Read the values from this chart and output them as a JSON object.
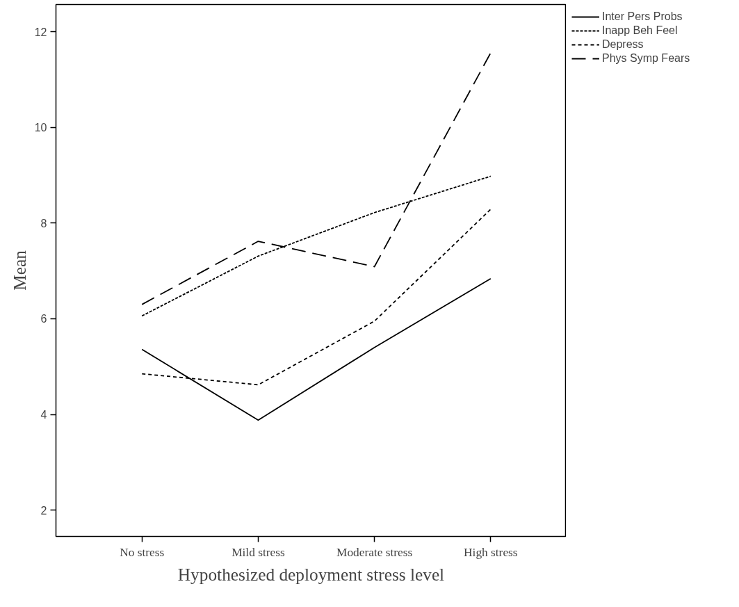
{
  "chart_data": {
    "type": "line",
    "xlabel": "Hypothesized deployment stress level",
    "ylabel": "Mean",
    "categories": [
      "No stress",
      "Mild stress",
      "Moderate stress",
      "High stress"
    ],
    "series": [
      {
        "name": "Inter Pers Probs",
        "color": "#000000",
        "line_style": "solid",
        "values": [
          5.36,
          3.88,
          5.4,
          6.84
        ]
      },
      {
        "name": "Inapp Beh Feel",
        "color": "#000000",
        "line_style": "dotted",
        "values": [
          6.06,
          7.31,
          8.22,
          8.98
        ]
      },
      {
        "name": "Depress",
        "color": "#000000",
        "line_style": "dashed",
        "values": [
          4.85,
          4.62,
          5.95,
          8.29
        ]
      },
      {
        "name": "Phys Symp Fears",
        "color": "#000000",
        "line_style": "dashdot",
        "values": [
          6.3,
          7.62,
          7.09,
          11.56
        ]
      }
    ],
    "ylim": [
      1.45,
      12.57
    ],
    "yticks": [
      2,
      4,
      6,
      8,
      10,
      12
    ],
    "grid": false,
    "legend": "top right",
    "marker": "none"
  }
}
